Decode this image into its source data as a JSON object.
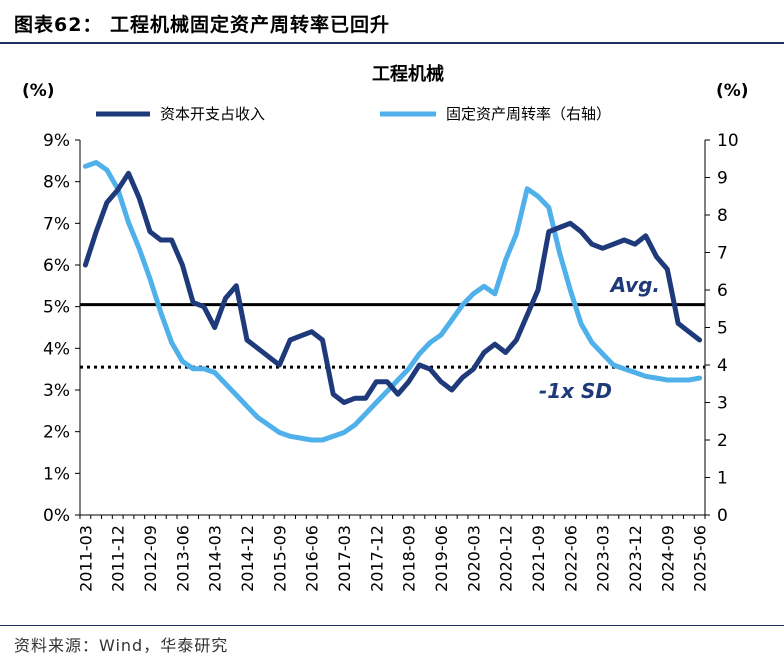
{
  "header": {
    "figure_title": "图表62：  工程机械固定资产周转率已回升"
  },
  "footer": {
    "source": "资料来源：Wind，华泰研究"
  },
  "colors": {
    "series1": "#1f3a7a",
    "series2": "#4fb0ea",
    "avg": "#000000",
    "sd": "#000000",
    "annotation": "#1f3a7a"
  },
  "chart_data": {
    "type": "line",
    "title": "工程机械",
    "ylabel_left": "(%)",
    "ylabel_right": "(%)",
    "ylim_left": [
      0,
      9
    ],
    "ylim_right": [
      0,
      10
    ],
    "yticks_left": [
      "0%",
      "1%",
      "2%",
      "3%",
      "4%",
      "5%",
      "6%",
      "7%",
      "8%",
      "9%"
    ],
    "yticks_right": [
      "0",
      "1",
      "2",
      "3",
      "4",
      "5",
      "6",
      "7",
      "8",
      "9",
      "10"
    ],
    "xtick_labels": [
      "2011-03",
      "2011-12",
      "2012-09",
      "2013-06",
      "2014-03",
      "2014-12",
      "2015-09",
      "2016-06",
      "2017-03",
      "2017-12",
      "2018-09",
      "2019-06",
      "2020-03",
      "2020-12",
      "2021-09",
      "2022-06",
      "2023-03",
      "2023-12",
      "2024-09",
      "2025-06"
    ],
    "quarters": [
      "2011-03",
      "2011-06",
      "2011-09",
      "2011-12",
      "2012-03",
      "2012-06",
      "2012-09",
      "2012-12",
      "2013-03",
      "2013-06",
      "2013-09",
      "2013-12",
      "2014-03",
      "2014-06",
      "2014-09",
      "2014-12",
      "2015-03",
      "2015-06",
      "2015-09",
      "2015-12",
      "2016-03",
      "2016-06",
      "2016-09",
      "2016-12",
      "2017-03",
      "2017-06",
      "2017-09",
      "2017-12",
      "2018-03",
      "2018-06",
      "2018-09",
      "2018-12",
      "2019-03",
      "2019-06",
      "2019-09",
      "2019-12",
      "2020-03",
      "2020-06",
      "2020-09",
      "2020-12",
      "2021-03",
      "2021-06",
      "2021-09",
      "2021-12",
      "2022-03",
      "2022-06",
      "2022-09",
      "2022-12",
      "2023-03",
      "2023-06",
      "2023-09",
      "2023-12",
      "2024-03",
      "2024-06",
      "2024-09",
      "2024-12",
      "2025-03",
      "2025-06"
    ],
    "series": [
      {
        "name": "资本开支占收入",
        "axis": "left",
        "values": [
          6.0,
          6.8,
          7.5,
          7.8,
          8.2,
          7.6,
          6.8,
          6.6,
          6.6,
          6.0,
          5.1,
          5.0,
          4.5,
          5.2,
          5.5,
          4.2,
          4.0,
          3.8,
          3.6,
          4.2,
          4.3,
          4.4,
          4.2,
          2.9,
          2.7,
          2.8,
          2.8,
          3.2,
          3.2,
          2.9,
          3.2,
          3.6,
          3.5,
          3.2,
          3.0,
          3.3,
          3.5,
          3.9,
          4.1,
          3.9,
          4.2,
          4.8,
          5.4,
          6.8,
          6.9,
          7.0,
          6.8,
          6.5,
          6.4,
          6.5,
          6.6,
          6.5,
          6.7,
          6.2,
          5.9,
          4.6,
          4.4,
          4.2
        ]
      },
      {
        "name": "固定资产周转率（右轴）",
        "axis": "right",
        "values": [
          9.3,
          9.4,
          9.2,
          8.7,
          7.8,
          7.1,
          6.3,
          5.4,
          4.6,
          4.1,
          3.9,
          3.9,
          3.8,
          3.5,
          3.2,
          2.9,
          2.6,
          2.4,
          2.2,
          2.1,
          2.05,
          2.0,
          2.0,
          2.1,
          2.2,
          2.4,
          2.7,
          3.0,
          3.3,
          3.6,
          3.9,
          4.3,
          4.6,
          4.8,
          5.2,
          5.6,
          5.9,
          6.1,
          5.9,
          6.8,
          7.5,
          8.7,
          8.5,
          8.2,
          7.0,
          6.0,
          5.1,
          4.6,
          4.3,
          4.0,
          3.9,
          3.8,
          3.7,
          3.65,
          3.6,
          3.6,
          3.6,
          3.65
        ]
      }
    ],
    "reference_lines": [
      {
        "name": "Avg.",
        "axis": "left",
        "value": 5.05,
        "style": "solid"
      },
      {
        "name": "-1x SD",
        "axis": "left",
        "value": 3.55,
        "style": "dotted"
      }
    ],
    "legend_position": "top"
  }
}
